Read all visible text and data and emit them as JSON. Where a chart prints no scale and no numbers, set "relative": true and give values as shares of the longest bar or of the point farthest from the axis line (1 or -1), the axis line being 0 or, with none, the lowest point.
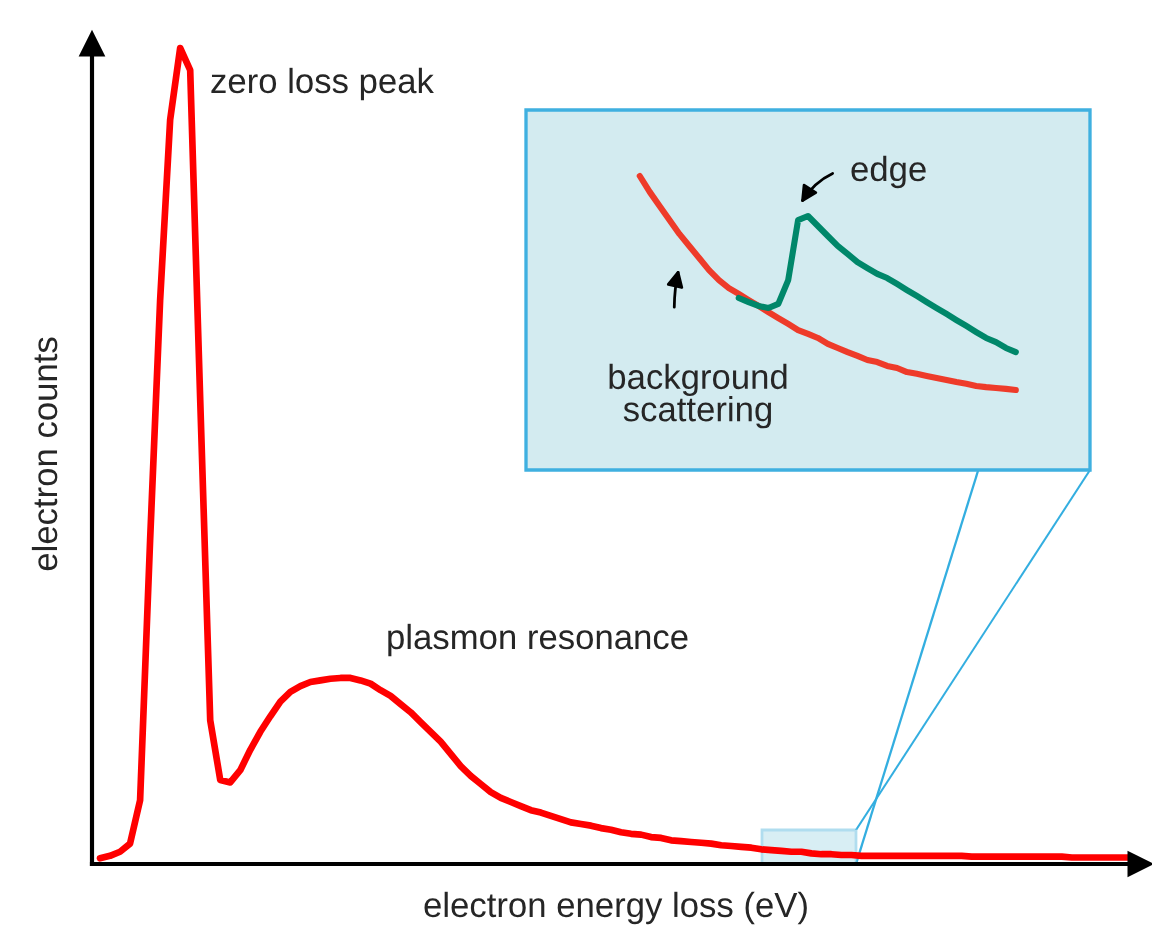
{
  "chart_data": [
    {
      "type": "line",
      "relative": true,
      "xlabel": "electron energy loss (eV)",
      "ylabel": "electron counts",
      "annotations": [
        "zero loss peak",
        "plasmon resonance"
      ],
      "categories": [
        null,
        null,
        null,
        null,
        null,
        null,
        null,
        null,
        null,
        null,
        null,
        null,
        null,
        null,
        null,
        null,
        null,
        null,
        null,
        null,
        null,
        null,
        null,
        null,
        null,
        null,
        null,
        null,
        null,
        null,
        null,
        null,
        null,
        null,
        null,
        null,
        null,
        null,
        null,
        null,
        null,
        null,
        null,
        null,
        null,
        null,
        null,
        null,
        null,
        null,
        null,
        null,
        null,
        null,
        null,
        null,
        null,
        null,
        null,
        null,
        null,
        null,
        null,
        null,
        null,
        null,
        null,
        null,
        null,
        null,
        null,
        null,
        null,
        null,
        null,
        null,
        null,
        null,
        null,
        null,
        null,
        null,
        null,
        null,
        null,
        null,
        null,
        null,
        null,
        null,
        null,
        null,
        null,
        null,
        null,
        null,
        null,
        null,
        null,
        null,
        null,
        null,
        null,
        null
      ],
      "series": [
        {
          "color": "#ff0000",
          "values": [
            0.007,
            0.01,
            0.015,
            0.025,
            0.078,
            0.397,
            0.691,
            0.912,
            1,
            0.973,
            0.569,
            0.176,
            0.103,
            0.1,
            0.115,
            0.14,
            0.162,
            0.181,
            0.199,
            0.211,
            0.218,
            0.223,
            0.225,
            0.227,
            0.228,
            0.228,
            0.225,
            0.221,
            0.213,
            0.206,
            0.196,
            0.186,
            0.174,
            0.162,
            0.15,
            0.135,
            0.12,
            0.108,
            0.098,
            0.088,
            0.081,
            0.076,
            0.071,
            0.066,
            0.063,
            0.059,
            0.055,
            0.051,
            0.049,
            0.047,
            0.044,
            0.042,
            0.039,
            0.037,
            0.036,
            0.033,
            0.032,
            0.029,
            0.028,
            0.027,
            0.026,
            0.025,
            0.023,
            0.022,
            0.021,
            0.02,
            0.018,
            0.017,
            0.016,
            0.015,
            0.015,
            0.013,
            0.012,
            0.012,
            0.011,
            0.011,
            0.01,
            0.01,
            0.01,
            0.01,
            0.01,
            0.01,
            0.01,
            0.01,
            0.01,
            0.01,
            0.01,
            0.009,
            0.009,
            0.009,
            0.009,
            0.009,
            0.009,
            0.009,
            0.009,
            0.009,
            0.009,
            0.008,
            0.008,
            0.008,
            0.008,
            0.008,
            0.008,
            0.008
          ]
        }
      ]
    },
    {
      "type": "line",
      "relative": true,
      "annotations": [
        "edge",
        "background\nscattering"
      ],
      "categories": [
        null,
        null,
        null,
        null,
        null,
        null,
        null,
        null,
        null,
        null,
        null,
        null,
        null,
        null,
        null,
        null,
        null,
        null,
        null,
        null,
        null,
        null,
        null,
        null,
        null,
        null,
        null,
        null,
        null,
        null,
        null,
        null,
        null,
        null,
        null,
        null,
        null,
        null,
        null,
        null,
        null,
        null,
        null,
        null,
        null,
        null,
        null,
        null,
        null,
        null,
        null,
        null,
        null,
        null,
        null,
        null,
        null
      ],
      "series": [
        {
          "color": "#ee3b2a",
          "values": [
            null,
            null,
            null,
            null,
            null,
            null,
            null,
            null,
            null,
            null,
            null,
            1,
            0.946,
            0.898,
            0.85,
            0.803,
            0.762,
            0.721,
            0.68,
            0.646,
            0.619,
            0.599,
            0.578,
            0.558,
            0.537,
            0.517,
            0.497,
            0.476,
            0.463,
            0.449,
            0.429,
            0.415,
            0.401,
            0.388,
            0.374,
            0.367,
            0.354,
            0.347,
            0.333,
            0.327,
            0.32,
            0.313,
            0.306,
            0.299,
            0.293,
            0.286,
            0.282,
            0.279,
            0.276,
            0.272,
            null,
            null,
            null,
            null,
            null,
            null,
            null
          ]
        },
        {
          "color": "#00876a",
          "values": [
            null,
            null,
            null,
            null,
            null,
            null,
            null,
            null,
            null,
            null,
            null,
            null,
            null,
            null,
            null,
            null,
            null,
            null,
            null,
            null,
            null,
            0.585,
            0.571,
            0.558,
            0.551,
            0.565,
            0.646,
            0.85,
            0.864,
            0.83,
            0.796,
            0.762,
            0.735,
            0.707,
            0.687,
            0.667,
            0.653,
            0.633,
            0.612,
            0.592,
            0.571,
            0.551,
            0.531,
            0.51,
            0.49,
            0.469,
            0.449,
            0.435,
            0.415,
            0.401,
            null,
            null,
            null,
            null,
            null,
            null,
            null
          ]
        }
      ]
    }
  ]
}
